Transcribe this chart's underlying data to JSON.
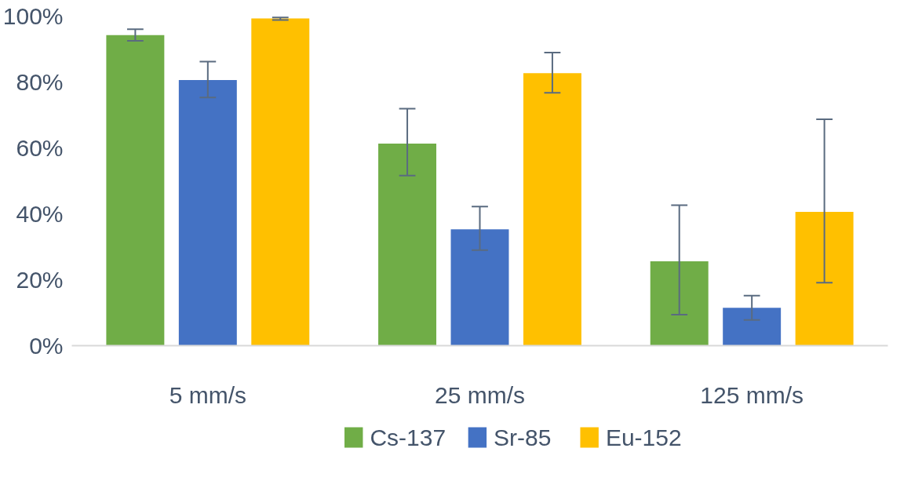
{
  "chart_data": {
    "type": "bar",
    "categories": [
      "5 mm/s",
      "25 mm/s",
      "125 mm/s"
    ],
    "series": [
      {
        "name": "Cs-137",
        "color": "#70ad47",
        "values": [
          94.2,
          61.3,
          25.6
        ],
        "errors": [
          [
            92.5,
            96
          ],
          [
            51.6,
            71.9
          ],
          [
            9.4,
            42.6
          ]
        ]
      },
      {
        "name": "Sr-85",
        "color": "#4472c4",
        "values": [
          80.6,
          35.3,
          11.5
        ],
        "errors": [
          [
            75.3,
            86.2
          ],
          [
            29,
            42.2
          ],
          [
            7.8,
            15.2
          ]
        ]
      },
      {
        "name": "Eu-152",
        "color": "#ffc000",
        "values": [
          99.3,
          82.7,
          40.6
        ],
        "errors": [
          [
            98.8,
            99.6
          ],
          [
            76.7,
            88.9
          ],
          [
            19.1,
            68.7
          ]
        ]
      }
    ],
    "ylim": [
      0,
      100
    ],
    "yticks": [
      {
        "value": 0,
        "label": "0%"
      },
      {
        "value": 20,
        "label": "20%"
      },
      {
        "value": 40,
        "label": "40%"
      },
      {
        "value": 60,
        "label": "60%"
      },
      {
        "value": 80,
        "label": "80%"
      },
      {
        "value": 100,
        "label": "100%"
      }
    ],
    "grid": false,
    "legend": "bottom"
  }
}
